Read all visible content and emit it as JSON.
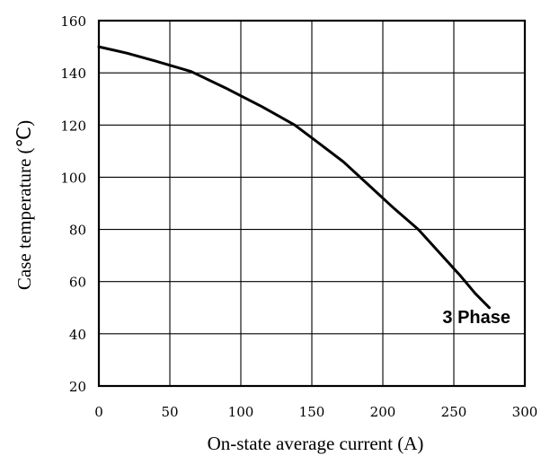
{
  "chart_data": {
    "type": "line",
    "xlabel": "On-state average current (A)",
    "ylabel": "Case temperature (℃)",
    "xlim": [
      0,
      300
    ],
    "ylim": [
      20,
      160
    ],
    "x_ticks": [
      "0",
      "50",
      "100",
      "150",
      "200",
      "250",
      "300"
    ],
    "y_ticks": [
      "20",
      "40",
      "60",
      "80",
      "100",
      "120",
      "140",
      "160"
    ],
    "grid": true,
    "series": [
      {
        "name": "3 Phase",
        "x": [
          0,
          20,
          40,
          65,
          90,
          115,
          138,
          155,
          172,
          190,
          208,
          225,
          240,
          255,
          265,
          275
        ],
        "y": [
          150,
          147.5,
          144.5,
          140.5,
          134,
          127,
          120,
          113,
          106,
          97,
          88,
          80,
          71,
          62,
          55.5,
          50
        ]
      }
    ]
  }
}
